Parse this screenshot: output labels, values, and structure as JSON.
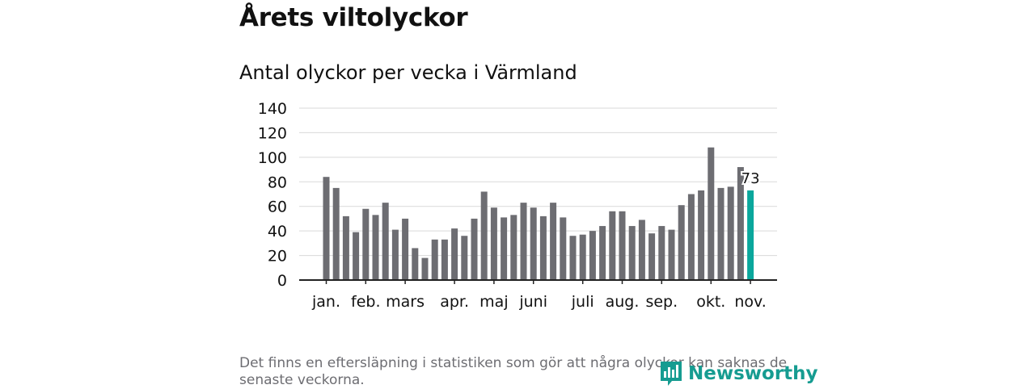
{
  "title": "Årets viltolyckor",
  "subtitle": "Antal olyckor per vecka i Värmland",
  "footnote": "Det finns en eftersläpning i statistiken som gör att några olyckor kan saknas de senaste veckorna.",
  "logo": {
    "text": "Newsworthy",
    "icon": "newsworthy-logo-icon"
  },
  "colors": {
    "bar": "#6d6d72",
    "highlight": "#0aa79c",
    "grid": "#d9d9d9",
    "axis": "#222222"
  },
  "chart_data": {
    "type": "bar",
    "yticks": [
      0,
      20,
      40,
      60,
      80,
      100,
      120,
      140
    ],
    "ylim": [
      0,
      140
    ],
    "xtick_labels": [
      {
        "label": "jan.",
        "week": 1
      },
      {
        "label": "feb.",
        "week": 5
      },
      {
        "label": "mars",
        "week": 9
      },
      {
        "label": "apr.",
        "week": 14
      },
      {
        "label": "maj",
        "week": 18
      },
      {
        "label": "juni",
        "week": 22
      },
      {
        "label": "juli",
        "week": 27
      },
      {
        "label": "aug.",
        "week": 31
      },
      {
        "label": "sep.",
        "week": 35
      },
      {
        "label": "okt.",
        "week": 40
      },
      {
        "label": "nov.",
        "week": 44
      }
    ],
    "values": [
      84,
      75,
      52,
      39,
      58,
      53,
      63,
      41,
      50,
      26,
      18,
      33,
      33,
      42,
      36,
      50,
      72,
      59,
      51,
      53,
      63,
      59,
      52,
      63,
      51,
      36,
      37,
      40,
      44,
      56,
      56,
      44,
      49,
      38,
      44,
      41,
      61,
      70,
      73,
      108,
      75,
      76,
      92,
      73
    ],
    "highlight_last": true,
    "last_label": "73"
  }
}
